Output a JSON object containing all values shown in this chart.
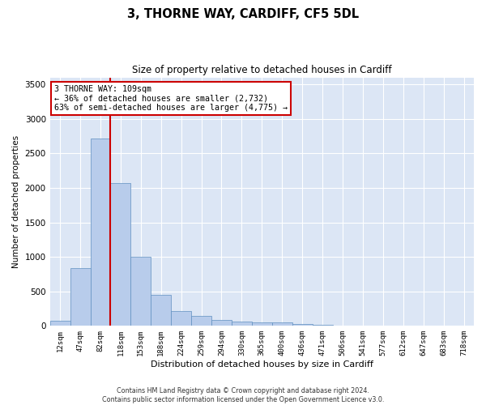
{
  "title": "3, THORNE WAY, CARDIFF, CF5 5DL",
  "subtitle": "Size of property relative to detached houses in Cardiff",
  "xlabel": "Distribution of detached houses by size in Cardiff",
  "ylabel": "Number of detached properties",
  "categories": [
    "12sqm",
    "47sqm",
    "82sqm",
    "118sqm",
    "153sqm",
    "188sqm",
    "224sqm",
    "259sqm",
    "294sqm",
    "330sqm",
    "365sqm",
    "400sqm",
    "436sqm",
    "471sqm",
    "506sqm",
    "541sqm",
    "577sqm",
    "612sqm",
    "647sqm",
    "683sqm",
    "718sqm"
  ],
  "values": [
    70,
    840,
    2720,
    2070,
    1000,
    450,
    210,
    140,
    90,
    65,
    50,
    45,
    30,
    20,
    5,
    3,
    2,
    2,
    1,
    1,
    1
  ],
  "bar_color": "#b8cceb",
  "bar_edge_color": "#6090c0",
  "background_color": "#dce6f5",
  "vline_x_index": 3,
  "vline_color": "#cc0000",
  "annotation_text": "3 THORNE WAY: 109sqm\n← 36% of detached houses are smaller (2,732)\n63% of semi-detached houses are larger (4,775) →",
  "annotation_box_color": "#ffffff",
  "annotation_box_edge": "#cc0000",
  "footer_text": "Contains HM Land Registry data © Crown copyright and database right 2024.\nContains public sector information licensed under the Open Government Licence v3.0.",
  "ylim": [
    0,
    3600
  ],
  "yticks": [
    0,
    500,
    1000,
    1500,
    2000,
    2500,
    3000,
    3500
  ]
}
